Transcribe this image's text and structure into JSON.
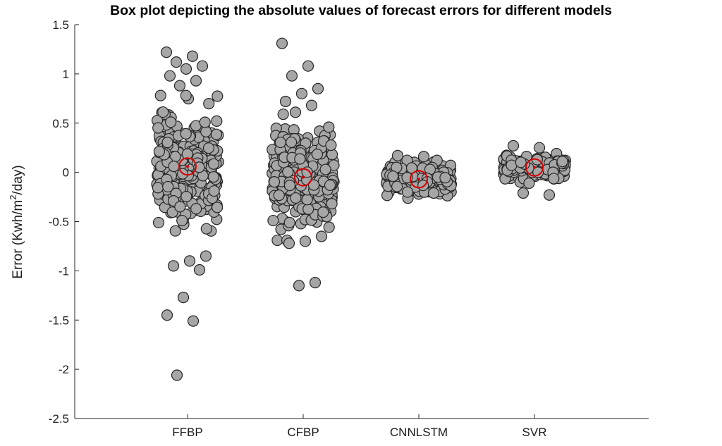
{
  "chart_data": {
    "type": "scatter",
    "title": "Box plot depicting the absolute values of forecast errors for different models",
    "ylabel_parts": [
      "Error (Kwh/m",
      "2",
      "/day)"
    ],
    "ylim": [
      -2.5,
      1.5
    ],
    "yticks": [
      "1.5",
      "1",
      "0.5",
      "0",
      "-0.5",
      "-1",
      "-1.5",
      "-2",
      "-2.5"
    ],
    "categories": [
      "FFBP",
      "CFBP",
      "CNNLSTM",
      "SVR"
    ],
    "series": [
      {
        "category": "FFBP",
        "center": 0.06,
        "spread": 0.45,
        "outliers": [
          1.22,
          1.18,
          1.12,
          1.08,
          1.05,
          0.98,
          0.93,
          0.88,
          -0.85,
          -0.9,
          -0.95,
          -0.99,
          -1.27,
          -1.45,
          -1.51,
          -2.06
        ]
      },
      {
        "category": "CFBP",
        "center": -0.05,
        "spread": 0.4,
        "outliers": [
          1.31,
          1.08,
          0.98,
          0.85,
          0.8,
          0.72,
          0.68,
          0.61,
          -0.65,
          -0.7,
          -0.72,
          -1.12,
          -1.15
        ]
      },
      {
        "category": "CNNLSTM",
        "center": -0.07,
        "spread": 0.12,
        "outliers": [
          0.17,
          0.16,
          -0.2,
          -0.21
        ]
      },
      {
        "category": "SVR",
        "center": 0.05,
        "spread": 0.1,
        "outliers": [
          0.27,
          0.25,
          -0.21,
          -0.23
        ]
      }
    ],
    "colors": {
      "marker_fill": "#a6a6a6",
      "marker_edge": "#262626",
      "median": "#d60000"
    },
    "grid": false,
    "legend": "none"
  }
}
